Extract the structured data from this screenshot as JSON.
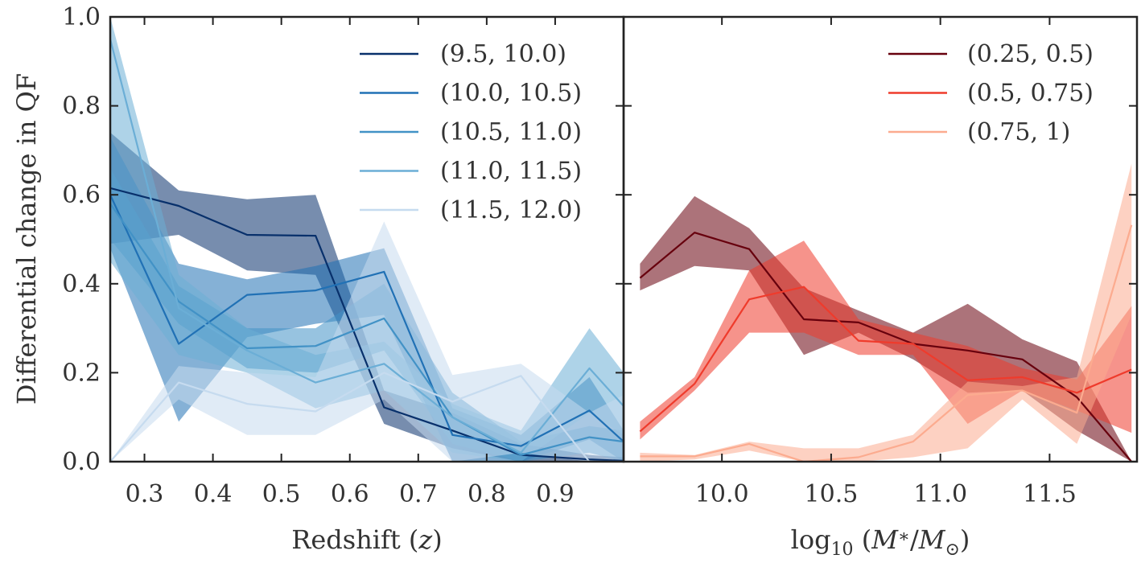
{
  "chart_data": [
    {
      "type": "line",
      "panel": "left",
      "xlabel": "Redshift",
      "xlabel_var": "z",
      "ylabel": "Differential change in QF",
      "xlim": [
        0.25,
        1.0
      ],
      "ylim": [
        0.0,
        1.0
      ],
      "xticks": [
        "0.3",
        "0.4",
        "0.5",
        "0.6",
        "0.7",
        "0.8",
        "0.9"
      ],
      "xtick_values": [
        0.3,
        0.4,
        0.5,
        0.6,
        0.7,
        0.8,
        0.9
      ],
      "yticks": [
        "0.0",
        "0.2",
        "0.4",
        "0.6",
        "0.8",
        "1.0"
      ],
      "ytick_values": [
        0.0,
        0.2,
        0.4,
        0.6,
        0.8,
        1.0
      ],
      "legend_position": "top-right",
      "grid": false,
      "x": [
        0.25,
        0.35,
        0.45,
        0.55,
        0.65,
        0.75,
        0.85,
        0.95,
        1.0
      ],
      "series": [
        {
          "name": "(9.5, 10.0)",
          "color": "#08306b",
          "values": [
            0.615,
            0.575,
            0.51,
            0.508,
            0.122,
            0.07,
            0.015,
            0.005,
            0.002
          ],
          "lower": [
            0.49,
            0.51,
            0.43,
            0.42,
            0.085,
            0.03,
            0.0,
            0.0,
            0.0
          ],
          "upper": [
            0.74,
            0.61,
            0.59,
            0.6,
            0.16,
            0.11,
            0.04,
            0.015,
            0.01
          ]
        },
        {
          "name": "(10.0, 10.5)",
          "color": "#2171b5",
          "values": [
            0.6,
            0.265,
            0.375,
            0.385,
            0.427,
            0.06,
            0.035,
            0.115,
            0.045
          ],
          "lower": [
            0.48,
            0.09,
            0.28,
            0.31,
            0.33,
            0.0,
            0.0,
            0.05,
            0.0
          ],
          "upper": [
            0.73,
            0.445,
            0.41,
            0.44,
            0.48,
            0.12,
            0.06,
            0.19,
            0.07
          ]
        },
        {
          "name": "(10.5, 11.0)",
          "color": "#4292c6",
          "values": [
            0.58,
            0.36,
            0.255,
            0.26,
            0.322,
            0.1,
            0.015,
            0.055,
            0.045
          ],
          "lower": [
            0.5,
            0.31,
            0.21,
            0.2,
            0.25,
            0.04,
            0.0,
            0.02,
            0.0
          ],
          "upper": [
            0.66,
            0.395,
            0.3,
            0.3,
            0.4,
            0.155,
            0.045,
            0.08,
            0.07
          ]
        },
        {
          "name": "(11.0, 11.5)",
          "color": "#6baed6",
          "values": [
            0.95,
            0.345,
            0.25,
            0.178,
            0.22,
            0.1,
            0.02,
            0.21,
            0.125
          ],
          "lower": [
            0.45,
            0.24,
            0.2,
            0.12,
            0.16,
            0.02,
            0.0,
            0.11,
            0.06
          ],
          "upper": [
            1.0,
            0.42,
            0.3,
            0.24,
            0.27,
            0.13,
            0.07,
            0.3,
            0.2
          ]
        },
        {
          "name": "(11.5, 12.0)",
          "color": "#c6dbef",
          "values": [
            0.0,
            0.178,
            0.13,
            0.113,
            0.2,
            0.135,
            0.193,
            0.0,
            0.0
          ],
          "lower": [
            0.0,
            0.14,
            0.06,
            0.06,
            0.14,
            0.0,
            0.02,
            0.0,
            0.0
          ],
          "upper": [
            0.0,
            0.215,
            0.2,
            0.19,
            0.54,
            0.195,
            0.22,
            0.11,
            0.15
          ]
        }
      ]
    },
    {
      "type": "line",
      "panel": "right",
      "xlabel_base": "log",
      "xlabel_sub": "10",
      "xlabel_num": "M",
      "xlabel_num_sub": "∗",
      "xlabel_den": "M",
      "xlabel_den_sub": "⊙",
      "xlim": [
        9.55,
        11.9
      ],
      "ylim": [
        0.0,
        1.0
      ],
      "xticks": [
        "10.0",
        "10.5",
        "11.0",
        "11.5"
      ],
      "xtick_values": [
        10.0,
        10.5,
        11.0,
        11.5
      ],
      "legend_position": "top-right",
      "grid": false,
      "x": [
        9.625,
        9.875,
        10.125,
        10.375,
        10.625,
        10.875,
        11.125,
        11.375,
        11.625,
        11.875
      ],
      "series": [
        {
          "name": "(0.25, 0.5)",
          "color": "#67000d",
          "values": [
            0.413,
            0.515,
            0.478,
            0.32,
            0.313,
            0.265,
            0.25,
            0.23,
            0.145,
            0.0
          ],
          "lower": [
            0.385,
            0.44,
            0.43,
            0.24,
            0.29,
            0.23,
            0.155,
            0.16,
            0.07,
            0.0
          ],
          "upper": [
            0.445,
            0.597,
            0.525,
            0.39,
            0.34,
            0.29,
            0.355,
            0.275,
            0.225,
            0.0
          ]
        },
        {
          "name": "(0.5, 0.75)",
          "color": "#ef3b2c",
          "values": [
            0.068,
            0.175,
            0.365,
            0.393,
            0.272,
            0.265,
            0.183,
            0.19,
            0.155,
            0.207
          ],
          "lower": [
            0.05,
            0.16,
            0.29,
            0.29,
            0.24,
            0.24,
            0.085,
            0.16,
            0.115,
            0.065
          ],
          "upper": [
            0.09,
            0.19,
            0.43,
            0.497,
            0.32,
            0.29,
            0.26,
            0.21,
            0.185,
            0.35
          ]
        },
        {
          "name": "(0.75, 1)",
          "color": "#fcab8f",
          "values": [
            0.012,
            0.012,
            0.04,
            0.0,
            0.01,
            0.045,
            0.15,
            0.16,
            0.11,
            0.532
          ],
          "lower": [
            0.0,
            0.005,
            0.025,
            0.0,
            0.0,
            0.01,
            0.03,
            0.14,
            0.04,
            0.33
          ],
          "upper": [
            0.02,
            0.015,
            0.045,
            0.03,
            0.03,
            0.06,
            0.18,
            0.17,
            0.19,
            0.67
          ]
        }
      ]
    }
  ]
}
